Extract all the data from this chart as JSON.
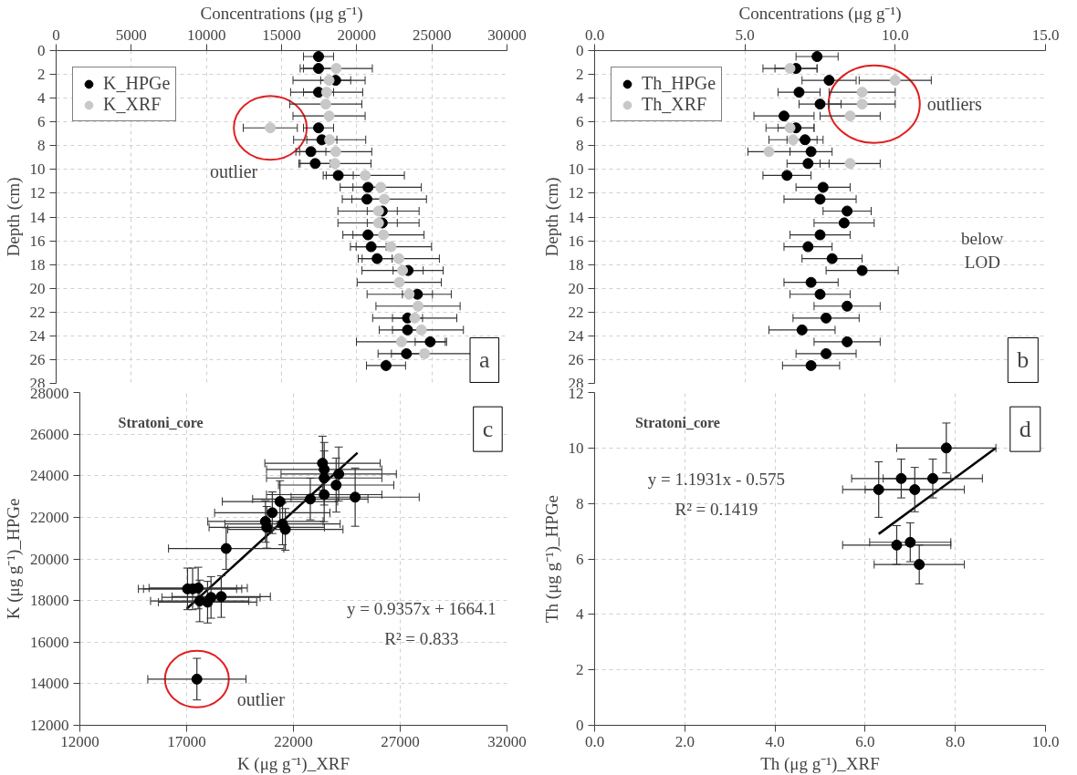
{
  "chart_data": [
    {
      "type": "scatter",
      "xlabel": "Concentrations (μg g⁻¹)",
      "ylabel": "Depth (cm)",
      "xlim": [
        0,
        30000
      ],
      "xticks": [
        0,
        5000,
        10000,
        15000,
        20000,
        25000,
        30000
      ],
      "ylim": [
        28,
        0
      ],
      "yticks": [
        0,
        2,
        4,
        6,
        8,
        10,
        12,
        14,
        16,
        18,
        20,
        22,
        24,
        26,
        28
      ],
      "grid": true,
      "legend": "top left",
      "marker": "circle",
      "series": [
        {
          "name": "K_HPGe",
          "color": "#000000",
          "x": [
            17460,
            17460,
            18600,
            17460,
            17460,
            17680,
            16950,
            17240,
            18770,
            20750,
            20680,
            21700,
            21700,
            20750,
            20960,
            21360,
            23420,
            24040,
            23380,
            23380,
            24890,
            23310,
            21950
          ],
          "values": [
            0.5,
            1.5,
            2.5,
            3.5,
            6.5,
            7.5,
            8.5,
            9.5,
            10.5,
            11.5,
            12.5,
            13.5,
            14.5,
            15.5,
            16.5,
            17.5,
            18.5,
            20.5,
            22.5,
            23.5,
            24.5,
            25.5,
            26.5
          ],
          "xerrors": [
            1000,
            1000,
            1000,
            1000,
            1000,
            1000,
            1000,
            1000,
            1000,
            1000,
            1000,
            1000,
            1000,
            1000,
            1000,
            1000,
            1000,
            1000,
            1000,
            1000,
            1000,
            1000,
            1300
          ]
        },
        {
          "name": "K_XRF",
          "color": "#c8c8c8",
          "x": [
            18640,
            18160,
            18000,
            17940,
            18160,
            14250,
            18200,
            18600,
            18550,
            20570,
            21600,
            21840,
            21450,
            21450,
            21780,
            22280,
            22800,
            23050,
            22830,
            23490,
            24080,
            23860,
            24300,
            22980,
            24520
          ],
          "values": [
            1.5,
            2.5,
            3.5,
            4.5,
            5.5,
            6.5,
            7.5,
            8.5,
            9.5,
            10.5,
            11.5,
            12.5,
            13.5,
            14.5,
            15.5,
            16.5,
            17.5,
            18.5,
            19.5,
            20.5,
            21.5,
            22.5,
            23.5,
            24.5,
            25.5
          ],
          "xerrors": [
            2400,
            2400,
            2400,
            2400,
            2400,
            1800,
            2400,
            2400,
            2400,
            2600,
            2700,
            2800,
            2700,
            2700,
            2700,
            2700,
            2700,
            2700,
            2800,
            2800,
            2800,
            2800,
            2800,
            3000,
            3100
          ]
        }
      ],
      "annotations": [
        {
          "text": "outlier",
          "x": 14250,
          "y": 6.5
        },
        "a"
      ]
    },
    {
      "type": "scatter",
      "xlabel": "Concentrations (μg g⁻¹)",
      "ylabel": "Depth (cm)",
      "xlim": [
        0,
        15
      ],
      "xticks": [
        {
          "value": 0,
          "label": "0.0"
        },
        {
          "value": 5,
          "label": "5.0"
        },
        {
          "value": 10,
          "label": "10.0"
        },
        {
          "value": 15,
          "label": "15.0"
        }
      ],
      "ylim": [
        28,
        0
      ],
      "yticks": [
        0,
        2,
        4,
        6,
        8,
        10,
        12,
        14,
        16,
        18,
        20,
        22,
        24,
        26,
        28
      ],
      "grid": true,
      "legend": "top left",
      "marker": "circle",
      "series": [
        {
          "name": "Th_HPGe",
          "color": "#000000",
          "x": [
            7.4,
            6.7,
            7.8,
            6.8,
            7.5,
            6.3,
            6.7,
            7.0,
            7.2,
            7.1,
            6.4,
            7.6,
            7.5,
            8.4,
            8.3,
            7.5,
            7.1,
            7.9,
            8.9,
            7.2,
            7.5,
            8.4,
            7.7,
            6.9,
            8.4,
            7.7,
            7.2
          ],
          "values": [
            0.5,
            1.5,
            2.5,
            3.5,
            4.5,
            5.5,
            6.5,
            7.5,
            8.5,
            9.5,
            10.5,
            11.5,
            12.5,
            13.5,
            14.5,
            15.5,
            16.5,
            17.5,
            18.5,
            19.5,
            20.5,
            21.5,
            22.5,
            23.5,
            24.5,
            25.5,
            26.5
          ],
          "xerrors": [
            0.7,
            0.7,
            0.9,
            0.7,
            0.7,
            1.0,
            0.6,
            0.6,
            0.7,
            0.7,
            0.8,
            0.9,
            1.2,
            0.8,
            1.0,
            1.0,
            0.8,
            1.0,
            1.2,
            0.9,
            1.0,
            1.1,
            1.1,
            1.1,
            1.1,
            1.0,
            0.95
          ]
        },
        {
          "name": "Th_XRF",
          "color": "#c8c8c8",
          "x": [
            6.5,
            10.0,
            8.9,
            8.9,
            8.5,
            6.5,
            6.6,
            5.8,
            8.5
          ],
          "values": [
            1.5,
            2.5,
            3.5,
            4.5,
            5.5,
            6.5,
            7.5,
            8.5,
            9.5
          ],
          "xerrors": [
            0.9,
            1.2,
            1.1,
            1.1,
            1.0,
            0.8,
            0.8,
            0.7,
            1.0
          ]
        }
      ],
      "annotations": [
        {
          "text": "outliers",
          "x": 9.3,
          "y": 4.5
        },
        "below LOD",
        "b"
      ]
    },
    {
      "type": "scatter",
      "title": "Stratoni_core",
      "xlabel": "K (μg g⁻¹)_XRF",
      "ylabel": "K (μg g⁻¹)_HPGe",
      "xlim": [
        12000,
        32000
      ],
      "xticks": [
        12000,
        17000,
        22000,
        27000,
        32000
      ],
      "ylim": [
        12000,
        28000
      ],
      "yticks": [
        12000,
        14000,
        16000,
        18000,
        20000,
        22000,
        24000,
        26000,
        28000
      ],
      "grid": true,
      "series": [
        {
          "color": "#000000",
          "marker": "circle",
          "x": [
            17480,
            17040,
            17280,
            17540,
            17610,
            17980,
            18140,
            18620,
            18850,
            20690,
            20750,
            21010,
            21370,
            21490,
            21620,
            22790,
            23360,
            23440,
            23440,
            23440,
            24000,
            24120,
            24890
          ],
          "values": [
            14220,
            18560,
            18560,
            18600,
            17980,
            17920,
            18150,
            18190,
            20500,
            21800,
            21520,
            22220,
            22760,
            21680,
            21420,
            22880,
            24600,
            24300,
            23890,
            23090,
            23550,
            24080,
            22970
          ],
          "xerrors": [
            2300,
            2300,
            2300,
            2300,
            2300,
            2300,
            2300,
            2300,
            2700,
            2700,
            2700,
            2700,
            2700,
            2700,
            2700,
            2700,
            2700,
            2700,
            2700,
            2700,
            2700,
            2700,
            3000
          ],
          "errors": [
            1000,
            1000,
            1000,
            1000,
            1000,
            1000,
            1000,
            1000,
            1000,
            1000,
            1000,
            1000,
            1000,
            1000,
            1000,
            1000,
            1300,
            1300,
            1300,
            1300,
            1300,
            1300,
            1400
          ]
        },
        {
          "type": "line",
          "color": "#000000",
          "x": [
            17000,
            25000
          ],
          "values": [
            17600,
            25100
          ]
        }
      ],
      "annotations": [
        "y = 0.9357x + 1664.1",
        "R² = 0.833",
        {
          "text": "outlier",
          "x": 17480,
          "y": 14220
        },
        "c"
      ]
    },
    {
      "type": "scatter",
      "title": "Stratoni_core",
      "xlabel": "Th (μg g⁻¹)_XRF",
      "ylabel": "Th (μg g⁻¹)_HPGe",
      "xlim": [
        0,
        10
      ],
      "xticks": [
        {
          "value": 0,
          "label": "0.0"
        },
        {
          "value": 2,
          "label": "2.0"
        },
        {
          "value": 4,
          "label": "4.0"
        },
        {
          "value": 6,
          "label": "6.0"
        },
        {
          "value": 8,
          "label": "8.0"
        },
        {
          "value": 10,
          "label": "10.0"
        }
      ],
      "ylim": [
        0,
        12
      ],
      "yticks": [
        0,
        2,
        4,
        6,
        8,
        10,
        12
      ],
      "grid": true,
      "series": [
        {
          "color": "#000000",
          "marker": "circle",
          "x": [
            6.3,
            6.8,
            7.1,
            7.5,
            7.8,
            6.7,
            7.0,
            7.2
          ],
          "values": [
            8.5,
            8.9,
            8.5,
            8.9,
            10.0,
            6.5,
            6.6,
            5.8
          ],
          "xerrors": [
            0.8,
            1.1,
            1.1,
            1.1,
            1.1,
            1.2,
            0.9,
            1.0
          ],
          "errors": [
            1.0,
            0.7,
            0.8,
            0.7,
            0.9,
            0.7,
            0.7,
            0.7
          ]
        },
        {
          "type": "line",
          "color": "#000000",
          "x": [
            6.3,
            8.9
          ],
          "values": [
            6.9,
            10.0
          ]
        }
      ],
      "annotations": [
        "y = 1.1931x - 0.575",
        "R² = 0.1419",
        "d"
      ]
    }
  ]
}
